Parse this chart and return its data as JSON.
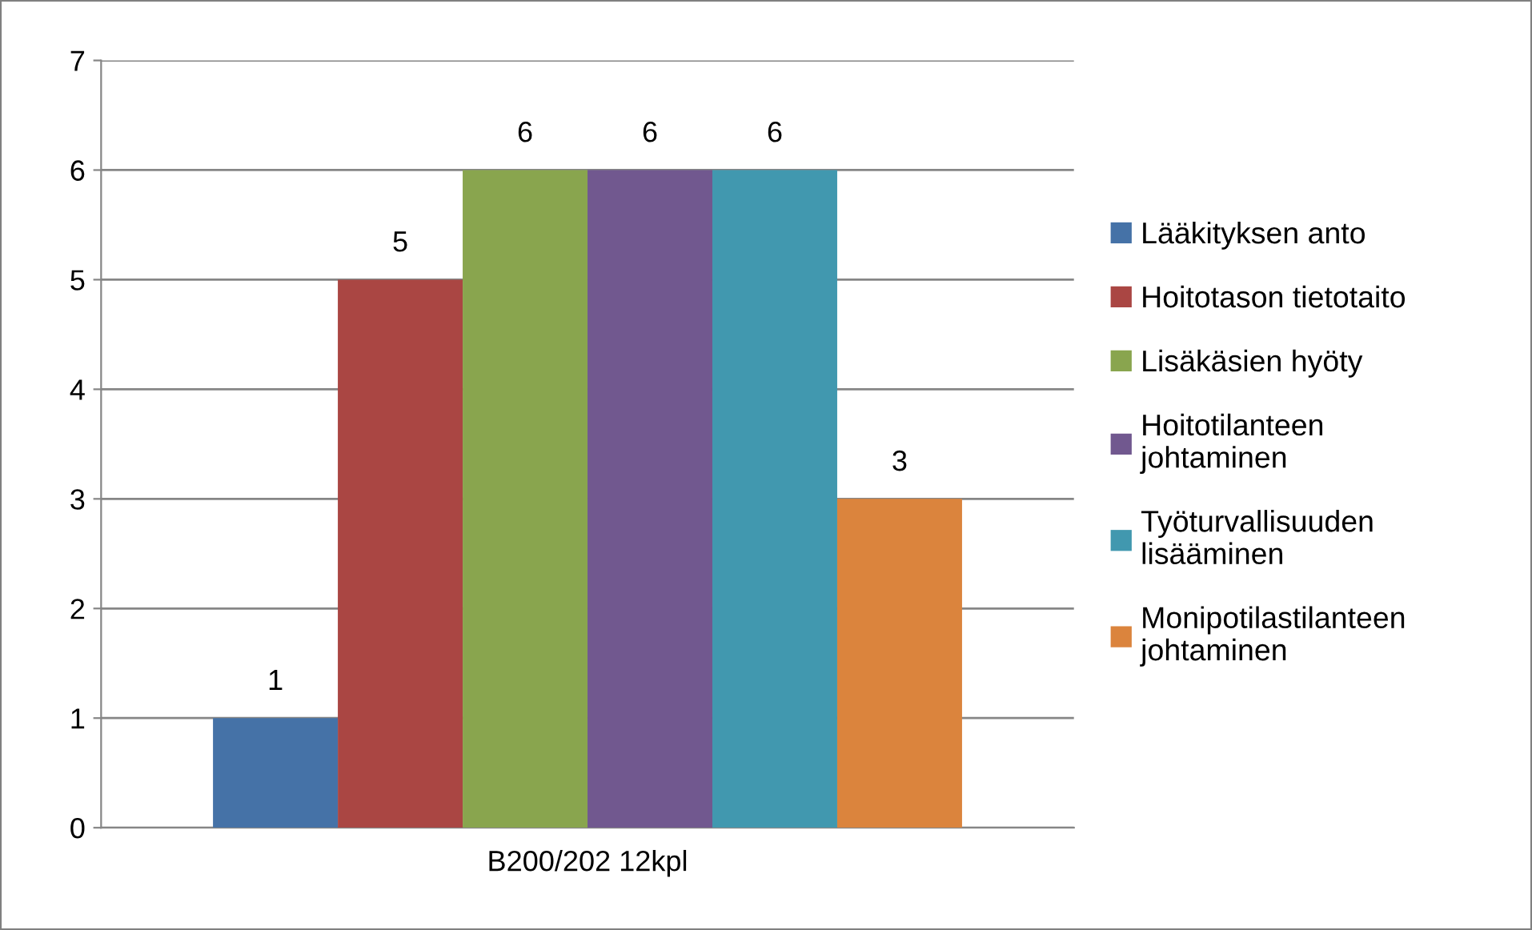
{
  "chart_data": {
    "type": "bar",
    "categories": [
      "B200/202 12kpl"
    ],
    "series": [
      {
        "name": "Lääkityksen anto",
        "color": "#4572a7",
        "values": [
          1
        ]
      },
      {
        "name": "Hoitotason tietotaito",
        "color": "#aa4643",
        "values": [
          5
        ]
      },
      {
        "name": "Lisäkäsien hyöty",
        "color": "#89a54e",
        "values": [
          6
        ]
      },
      {
        "name": "Hoitotilanteen johtaminen",
        "color": "#71588f",
        "values": [
          6
        ]
      },
      {
        "name": "Työturvallisuuden lisääminen",
        "color": "#4198af",
        "values": [
          6
        ]
      },
      {
        "name": "Monipotilastilanteen johtaminen",
        "color": "#db843d",
        "values": [
          3
        ]
      }
    ],
    "ylim": [
      0,
      7
    ],
    "yticks": [
      0,
      1,
      2,
      3,
      4,
      5,
      6,
      7
    ],
    "grid": "y",
    "legend": "right",
    "data_labels": true
  }
}
